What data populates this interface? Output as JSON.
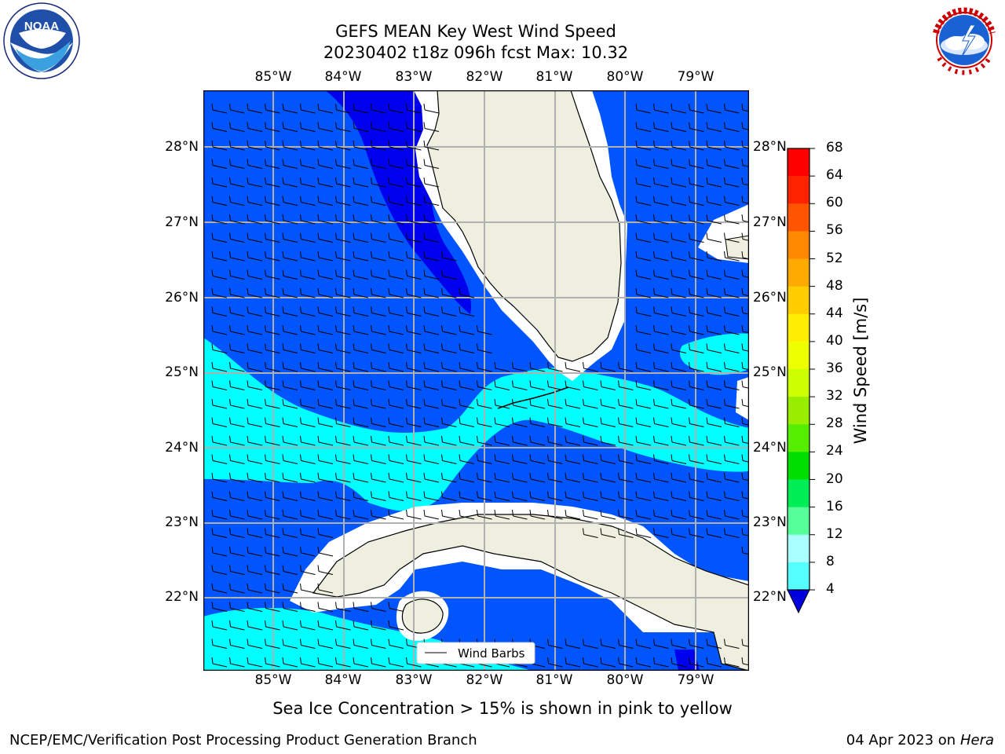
{
  "header": {
    "title_line1": "GEFS MEAN Key West Wind Speed",
    "title_line2": "20230402 t18z 096h fcst   Max: 10.32"
  },
  "logos": {
    "left": {
      "text": "NOAA",
      "ring_text": "NATIONAL OCEANIC AND ATMOSPHERIC ADMINISTRATION · U.S. DEPARTMENT OF COMMERCE"
    },
    "right": {
      "ring_text": "NATIONAL WEATHER SERVICE"
    }
  },
  "map": {
    "lon_labels": [
      "85°W",
      "84°W",
      "83°W",
      "82°W",
      "81°W",
      "80°W",
      "79°W"
    ],
    "lat_labels": [
      "28°N",
      "27°N",
      "26°N",
      "25°N",
      "24°N",
      "23°N",
      "22°N"
    ],
    "legend_label": "Wind Barbs",
    "colors": {
      "band_4_8": "#0055ff",
      "band_8_12": "#00ffff",
      "band_0_4": "#0000ee",
      "land": "#efefdf",
      "grid": "#b0b0b0"
    }
  },
  "colorbar": {
    "label": "Wind Speed [m/s]",
    "ticks": [
      "68",
      "64",
      "60",
      "56",
      "52",
      "48",
      "44",
      "40",
      "36",
      "32",
      "28",
      "24",
      "20",
      "16",
      "12",
      "8",
      "4"
    ],
    "colors": [
      "#ff0000",
      "#ff2200",
      "#ff5500",
      "#ff8800",
      "#ffaa00",
      "#ffcc00",
      "#ffee00",
      "#eeff00",
      "#ccff00",
      "#99ee00",
      "#55ee00",
      "#00dd00",
      "#00ee55",
      "#55ff99",
      "#aaffff",
      "#55ffff",
      "#00ffff",
      "#0066ff"
    ],
    "under_color": "#0000dd"
  },
  "caption": "Sea Ice Concentration > 15% is shown in pink to yellow",
  "footer": {
    "left": "NCEP/EMC/Verification Post Processing Product Generation Branch",
    "right_date": "04 Apr 2023 on ",
    "right_host": "Hera"
  }
}
